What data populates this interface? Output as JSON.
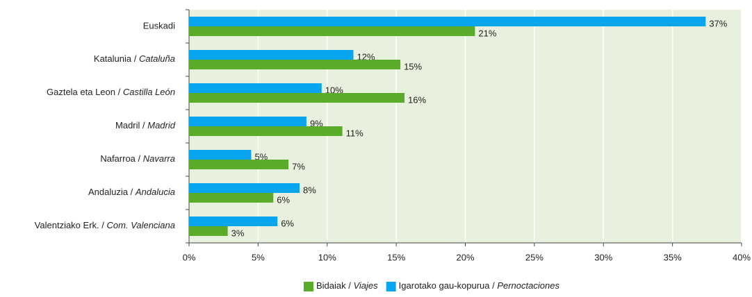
{
  "chart_data": {
    "type": "hbar",
    "categories": [
      "Euskadi",
      "Katalunia / Cataluña",
      "Gaztela eta Leon / Castilla León",
      "Madril / Madrid",
      "Nafarroa / Navarra",
      "Andaluzia / Andalucia",
      "Valentziako Erk. / Com. Valenciana"
    ],
    "series": [
      {
        "name": "Igarotako gau-kopurua / Pernoctaciones",
        "color": "#0aa5ef",
        "values": [
          37.4,
          11.9,
          9.6,
          8.5,
          4.5,
          8.0,
          6.4
        ],
        "value_labels": [
          "37%",
          "12%",
          "10%",
          "9%",
          "5%",
          "8%",
          "6%"
        ]
      },
      {
        "name": "Bidaiak / Viajes",
        "color": "#5aab2a",
        "values": [
          20.7,
          15.3,
          15.6,
          11.1,
          7.2,
          6.1,
          2.8
        ],
        "value_labels": [
          "21%",
          "15%",
          "16%",
          "11%",
          "7%",
          "6%",
          "3%"
        ]
      }
    ],
    "xlim": [
      0,
      40
    ],
    "xticks": [
      {
        "value": 0,
        "label": "0%"
      },
      {
        "value": 5,
        "label": "5%"
      },
      {
        "value": 10,
        "label": "10%"
      },
      {
        "value": 15,
        "label": "15%"
      },
      {
        "value": 20,
        "label": "20%"
      },
      {
        "value": 25,
        "label": "25%"
      },
      {
        "value": 30,
        "label": "30%"
      },
      {
        "value": 35,
        "label": "35%"
      },
      {
        "value": 40,
        "label": "40%"
      }
    ],
    "grid": true,
    "legend": "bottom"
  }
}
